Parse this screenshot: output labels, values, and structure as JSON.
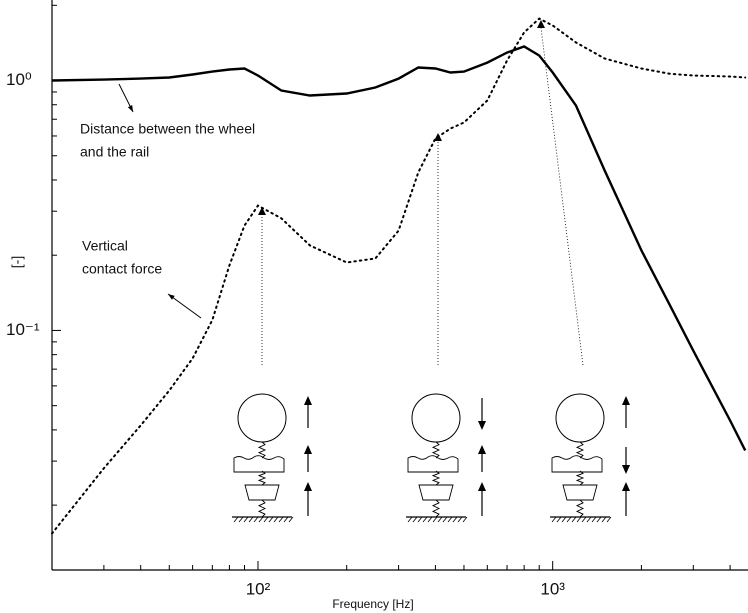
{
  "chart_data": {
    "type": "line",
    "xlabel": "Frequency [Hz]",
    "ylabel": "[-]",
    "log_x": true,
    "log_y": true,
    "xlim": [
      20,
      4600
    ],
    "ylim": [
      0.011,
      2.1
    ],
    "xticks": [
      {
        "value": 100,
        "label": "10²"
      },
      {
        "value": 1000,
        "label": "10³"
      }
    ],
    "yticks": [
      {
        "value": 0.1,
        "label": "10⁻¹"
      },
      {
        "value": 1,
        "label": "10⁰"
      }
    ],
    "xminorticks": [
      20,
      30,
      40,
      50,
      60,
      70,
      80,
      90,
      200,
      300,
      400,
      500,
      600,
      700,
      800,
      900,
      2000,
      3000,
      4000
    ],
    "yminorticks": [
      0.02,
      0.03,
      0.04,
      0.05,
      0.06,
      0.07,
      0.08,
      0.09,
      0.2,
      0.3,
      0.4,
      0.5,
      0.6,
      0.7,
      0.8,
      0.9,
      2
    ],
    "x": [
      20,
      30,
      40,
      50,
      60,
      70,
      80,
      90,
      100,
      120,
      150,
      200,
      250,
      300,
      350,
      400,
      450,
      500,
      600,
      700,
      800,
      900,
      1000,
      1200,
      1500,
      2000,
      2500,
      3000,
      4000,
      4500
    ],
    "series": [
      {
        "color": "#000000",
        "style": "solid",
        "values": [
          1.0,
          1.009,
          1.018,
          1.028,
          1.057,
          1.086,
          1.107,
          1.117,
          1.047,
          0.912,
          0.871,
          0.887,
          0.938,
          1.018,
          1.127,
          1.117,
          1.077,
          1.086,
          1.18,
          1.294,
          1.368,
          1.259,
          1.077,
          0.794,
          0.437,
          0.209,
          0.126,
          0.083,
          0.0436,
          0.0331
        ]
      },
      {
        "color": "#000000",
        "style": "dotted",
        "values": [
          0.0154,
          0.0281,
          0.0417,
          0.0575,
          0.0773,
          0.11,
          0.182,
          0.263,
          0.316,
          0.281,
          0.219,
          0.187,
          0.194,
          0.251,
          0.429,
          0.586,
          0.643,
          0.679,
          0.832,
          1.202,
          1.556,
          1.77,
          1.66,
          1.419,
          1.225,
          1.117,
          1.064,
          1.047,
          1.038,
          1.028
        ]
      }
    ],
    "annotations": [
      {
        "lines": [
          "Distance between the wheel",
          "and the rail"
        ]
      },
      {
        "lines": [
          "Vertical",
          "contact force"
        ]
      }
    ]
  }
}
